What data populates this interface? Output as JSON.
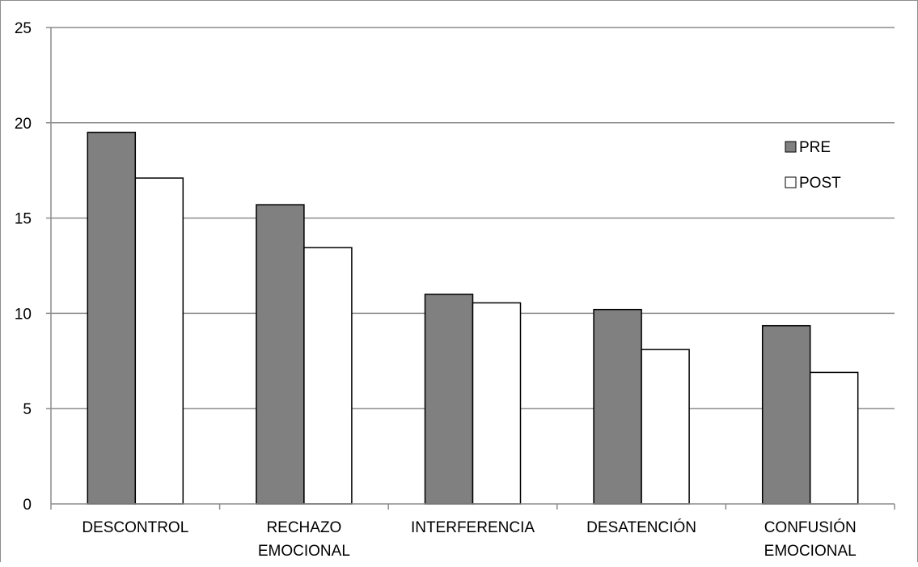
{
  "colors": {
    "pre": "#808080",
    "post": "#ffffff",
    "bar_stroke": "#000000",
    "grid": "#8c8c8c"
  },
  "chart_data": {
    "type": "bar",
    "categories": [
      [
        "DESCONTROL"
      ],
      [
        "RECHAZO",
        "EMOCIONAL"
      ],
      [
        "INTERFERENCIA"
      ],
      [
        "DESATENCIÓN"
      ],
      [
        "CONFUSIÓN",
        "EMOCIONAL"
      ]
    ],
    "series": [
      {
        "name": "PRE",
        "values": [
          19.5,
          15.7,
          11.0,
          10.2,
          9.35
        ]
      },
      {
        "name": "POST",
        "values": [
          17.1,
          13.45,
          10.55,
          8.1,
          6.9
        ]
      }
    ],
    "title": "",
    "xlabel": "",
    "ylabel": "",
    "ylim": [
      0,
      25
    ],
    "yticks": [
      0,
      5,
      10,
      15,
      20,
      25
    ],
    "grid": true,
    "legend_position": "right"
  }
}
